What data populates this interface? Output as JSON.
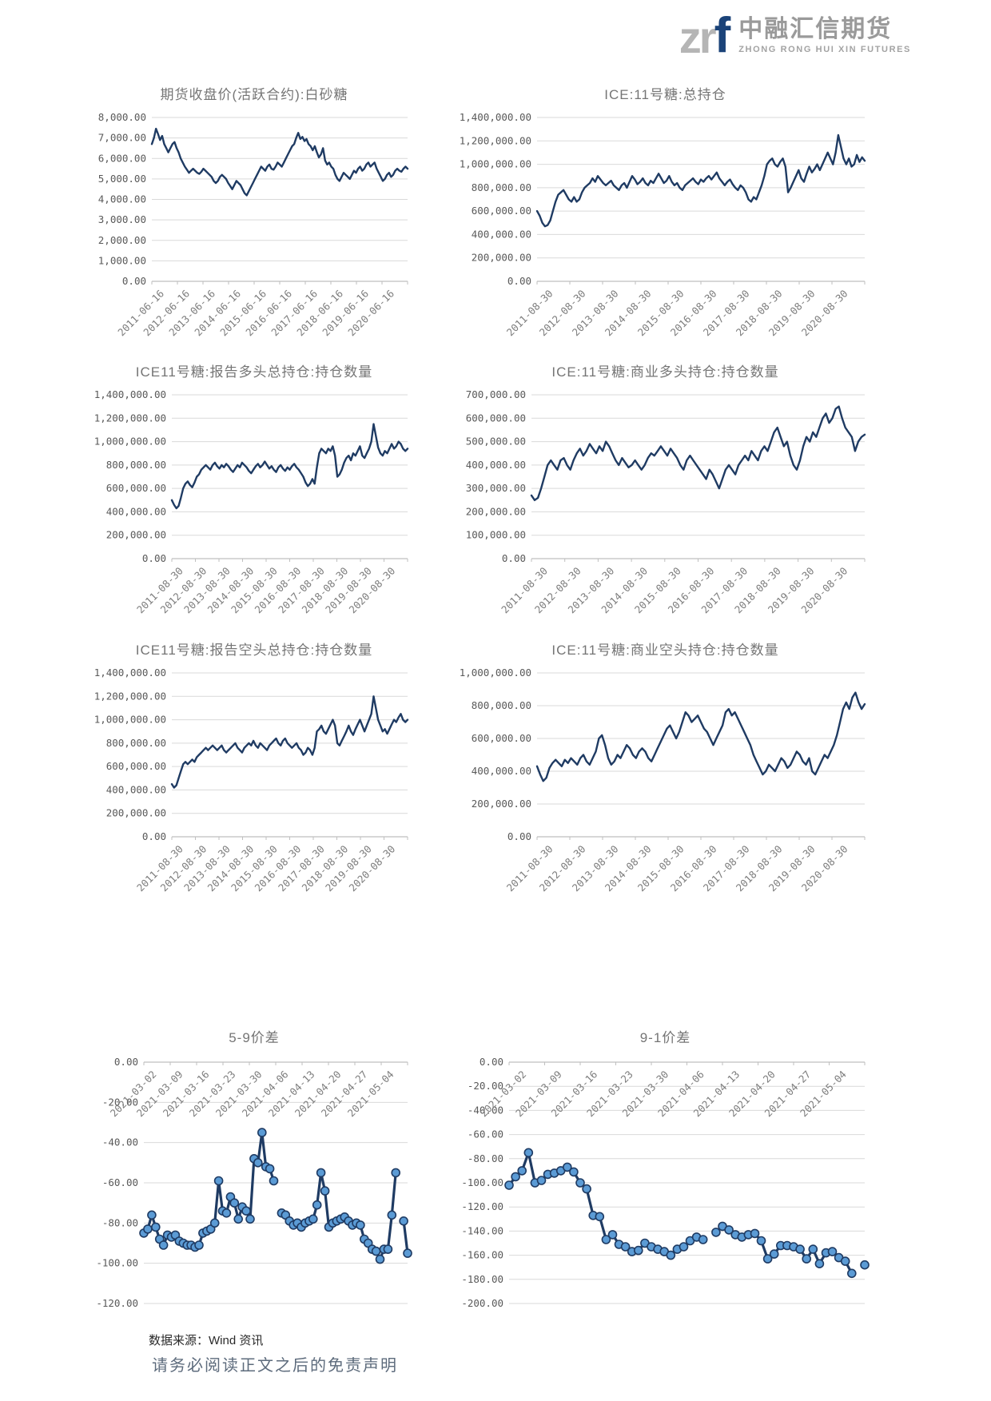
{
  "logo": {
    "zr": "zr",
    "f": "f",
    "name_cn": "中融汇信期货",
    "name_en": "ZHONG RONG HUI XIN FUTURES"
  },
  "footer": {
    "source": "数据来源：Wind 资讯",
    "disclaimer": "请务必阅读正文之后的免责声明"
  },
  "style": {
    "line_color": "#1f3b63",
    "marker_fill": "#5b9bd5",
    "grid_color": "#d9d9d9",
    "axis_color": "#bfbfbf",
    "tick_label_color": "#595959",
    "title_color": "#757575"
  },
  "chart_data": [
    {
      "type": "line",
      "title": "期货收盘价(活跃合约):白砂糖",
      "ylabel": "",
      "xlabel": "",
      "y_min": 0,
      "y_max": 8000,
      "y_step": 1000,
      "markers": false,
      "x_labels": [
        "2011-06-16",
        "2012-06-16",
        "2013-06-16",
        "2014-06-16",
        "2015-06-16",
        "2016-06-16",
        "2017-06-16",
        "2018-06-16",
        "2019-06-16",
        "2020-06-16"
      ],
      "values": [
        6700,
        7000,
        7450,
        7200,
        6900,
        7100,
        6700,
        6500,
        6300,
        6500,
        6700,
        6800,
        6500,
        6300,
        6000,
        5800,
        5600,
        5450,
        5300,
        5400,
        5500,
        5400,
        5300,
        5250,
        5350,
        5500,
        5400,
        5300,
        5200,
        5100,
        4900,
        4800,
        4900,
        5100,
        5200,
        5100,
        5000,
        4800,
        4650,
        4500,
        4700,
        4900,
        4800,
        4700,
        4500,
        4300,
        4200,
        4400,
        4600,
        4800,
        5000,
        5200,
        5400,
        5600,
        5500,
        5400,
        5600,
        5700,
        5500,
        5450,
        5600,
        5800,
        5700,
        5600,
        5800,
        6000,
        6200,
        6400,
        6600,
        6700,
        7000,
        7250,
        6950,
        7050,
        6850,
        6950,
        6700,
        6600,
        6400,
        6600,
        6300,
        6050,
        6200,
        6500,
        5900,
        5700,
        5800,
        5600,
        5500,
        5200,
        5000,
        4900,
        5100,
        5300,
        5200,
        5100,
        5000,
        5200,
        5400,
        5300,
        5500,
        5600,
        5400,
        5500,
        5700,
        5800,
        5600,
        5700,
        5800,
        5500,
        5300,
        5100,
        4900,
        5000,
        5200,
        5300,
        5100,
        5200,
        5400,
        5500,
        5400,
        5350,
        5500,
        5600,
        5500
      ]
    },
    {
      "type": "line",
      "title": "ICE:11号糖:总持仓",
      "ylabel": "",
      "xlabel": "",
      "y_min": 0,
      "y_max": 1400000,
      "y_step": 200000,
      "markers": false,
      "x_labels": [
        "2011-08-30",
        "2012-08-30",
        "2013-08-30",
        "2014-08-30",
        "2015-08-30",
        "2016-08-30",
        "2017-08-30",
        "2018-08-30",
        "2019-08-30",
        "2020-08-30"
      ],
      "values": [
        600000,
        560000,
        500000,
        470000,
        480000,
        520000,
        600000,
        680000,
        740000,
        760000,
        780000,
        740000,
        700000,
        680000,
        720000,
        680000,
        700000,
        760000,
        800000,
        820000,
        840000,
        880000,
        850000,
        900000,
        870000,
        840000,
        820000,
        840000,
        860000,
        820000,
        800000,
        780000,
        820000,
        840000,
        800000,
        850000,
        900000,
        870000,
        830000,
        850000,
        880000,
        840000,
        820000,
        860000,
        840000,
        880000,
        920000,
        880000,
        840000,
        860000,
        900000,
        850000,
        820000,
        840000,
        800000,
        780000,
        820000,
        840000,
        860000,
        880000,
        850000,
        830000,
        870000,
        850000,
        880000,
        900000,
        870000,
        900000,
        930000,
        880000,
        850000,
        820000,
        850000,
        870000,
        830000,
        800000,
        780000,
        820000,
        800000,
        760000,
        700000,
        680000,
        720000,
        700000,
        760000,
        820000,
        900000,
        1000000,
        1030000,
        1050000,
        1000000,
        980000,
        1020000,
        1050000,
        980000,
        760000,
        800000,
        850000,
        900000,
        950000,
        880000,
        850000,
        920000,
        980000,
        930000,
        960000,
        1000000,
        950000,
        1000000,
        1050000,
        1100000,
        1050000,
        1000000,
        1100000,
        1250000,
        1150000,
        1050000,
        1000000,
        1050000,
        980000,
        1000000,
        1080000,
        1020000,
        1060000,
        1030000
      ]
    },
    {
      "type": "line",
      "title": "ICE11号糖:报告多头总持仓:持仓数量",
      "ylabel": "",
      "xlabel": "",
      "y_min": 0,
      "y_max": 1400000,
      "y_step": 200000,
      "markers": false,
      "x_labels": [
        "2011-08-30",
        "2012-08-30",
        "2013-08-30",
        "2014-08-30",
        "2015-08-30",
        "2016-08-30",
        "2017-08-30",
        "2018-08-30",
        "2019-08-30",
        "2020-08-30"
      ],
      "values": [
        500000,
        460000,
        430000,
        450000,
        520000,
        600000,
        640000,
        660000,
        630000,
        610000,
        650000,
        700000,
        720000,
        760000,
        780000,
        800000,
        780000,
        760000,
        800000,
        820000,
        790000,
        770000,
        800000,
        780000,
        810000,
        790000,
        760000,
        740000,
        770000,
        800000,
        780000,
        820000,
        800000,
        780000,
        750000,
        730000,
        760000,
        790000,
        810000,
        780000,
        800000,
        830000,
        800000,
        770000,
        790000,
        760000,
        740000,
        780000,
        800000,
        770000,
        750000,
        780000,
        760000,
        790000,
        810000,
        780000,
        760000,
        730000,
        700000,
        650000,
        620000,
        640000,
        680000,
        640000,
        780000,
        900000,
        940000,
        920000,
        900000,
        940000,
        920000,
        960000,
        880000,
        700000,
        720000,
        760000,
        820000,
        860000,
        880000,
        840000,
        900000,
        880000,
        920000,
        960000,
        880000,
        860000,
        900000,
        940000,
        1000000,
        1150000,
        1050000,
        950000,
        900000,
        880000,
        920000,
        900000,
        940000,
        980000,
        940000,
        960000,
        1000000,
        980000,
        940000,
        920000,
        940000
      ]
    },
    {
      "type": "line",
      "title": "ICE:11号糖:商业多头持仓:持仓数量",
      "ylabel": "",
      "xlabel": "",
      "y_min": 0,
      "y_max": 700000,
      "y_step": 100000,
      "markers": false,
      "x_labels": [
        "2011-08-30",
        "2012-08-30",
        "2013-08-30",
        "2014-08-30",
        "2015-08-30",
        "2016-08-30",
        "2017-08-30",
        "2018-08-30",
        "2019-08-30",
        "2020-08-30"
      ],
      "values": [
        270000,
        250000,
        260000,
        300000,
        350000,
        400000,
        420000,
        400000,
        380000,
        420000,
        430000,
        400000,
        380000,
        420000,
        450000,
        470000,
        440000,
        460000,
        490000,
        470000,
        450000,
        480000,
        460000,
        500000,
        480000,
        450000,
        420000,
        400000,
        430000,
        410000,
        390000,
        400000,
        420000,
        400000,
        380000,
        400000,
        430000,
        450000,
        440000,
        460000,
        480000,
        460000,
        440000,
        470000,
        450000,
        430000,
        400000,
        380000,
        420000,
        440000,
        420000,
        400000,
        380000,
        360000,
        340000,
        380000,
        360000,
        330000,
        300000,
        340000,
        380000,
        400000,
        380000,
        360000,
        400000,
        420000,
        440000,
        420000,
        460000,
        440000,
        420000,
        460000,
        480000,
        460000,
        500000,
        540000,
        560000,
        520000,
        480000,
        500000,
        440000,
        400000,
        380000,
        420000,
        480000,
        520000,
        500000,
        540000,
        520000,
        560000,
        600000,
        620000,
        580000,
        600000,
        640000,
        650000,
        600000,
        560000,
        540000,
        520000,
        460000,
        500000,
        520000,
        530000
      ]
    },
    {
      "type": "line",
      "title": "ICE11号糖:报告空头总持仓:持仓数量",
      "ylabel": "",
      "xlabel": "",
      "y_min": 0,
      "y_max": 1400000,
      "y_step": 200000,
      "markers": false,
      "x_labels": [
        "2011-08-30",
        "2012-08-30",
        "2013-08-30",
        "2014-08-30",
        "2015-08-30",
        "2016-08-30",
        "2017-08-30",
        "2018-08-30",
        "2019-08-30",
        "2020-08-30"
      ],
      "values": [
        450000,
        420000,
        440000,
        500000,
        560000,
        620000,
        640000,
        620000,
        640000,
        660000,
        640000,
        680000,
        700000,
        720000,
        740000,
        760000,
        740000,
        760000,
        780000,
        760000,
        740000,
        760000,
        780000,
        740000,
        720000,
        740000,
        760000,
        780000,
        800000,
        760000,
        740000,
        720000,
        760000,
        780000,
        800000,
        780000,
        820000,
        780000,
        760000,
        800000,
        780000,
        760000,
        740000,
        780000,
        800000,
        820000,
        840000,
        800000,
        780000,
        820000,
        840000,
        800000,
        780000,
        760000,
        780000,
        800000,
        760000,
        740000,
        700000,
        720000,
        760000,
        740000,
        700000,
        760000,
        900000,
        920000,
        950000,
        900000,
        880000,
        920000,
        960000,
        1000000,
        950000,
        800000,
        780000,
        820000,
        860000,
        900000,
        950000,
        900000,
        870000,
        920000,
        960000,
        1000000,
        950000,
        900000,
        950000,
        1000000,
        1050000,
        1200000,
        1100000,
        1000000,
        950000,
        900000,
        920000,
        880000,
        920000,
        960000,
        1000000,
        980000,
        1020000,
        1050000,
        1000000,
        980000,
        1000000
      ]
    },
    {
      "type": "line",
      "title": "ICE:11号糖:商业空头持仓:持仓数量",
      "ylabel": "",
      "xlabel": "",
      "y_min": 0,
      "y_max": 1000000,
      "y_step": 200000,
      "markers": false,
      "x_labels": [
        "2011-08-30",
        "2012-08-30",
        "2013-08-30",
        "2014-08-30",
        "2015-08-30",
        "2016-08-30",
        "2017-08-30",
        "2018-08-30",
        "2019-08-30",
        "2020-08-30"
      ],
      "values": [
        430000,
        380000,
        340000,
        360000,
        420000,
        450000,
        470000,
        450000,
        430000,
        470000,
        450000,
        480000,
        460000,
        440000,
        480000,
        500000,
        460000,
        440000,
        480000,
        520000,
        600000,
        620000,
        560000,
        480000,
        440000,
        460000,
        500000,
        480000,
        520000,
        560000,
        540000,
        500000,
        480000,
        520000,
        540000,
        520000,
        480000,
        460000,
        500000,
        540000,
        580000,
        620000,
        660000,
        680000,
        640000,
        600000,
        640000,
        700000,
        760000,
        740000,
        700000,
        720000,
        740000,
        700000,
        660000,
        640000,
        600000,
        560000,
        600000,
        640000,
        680000,
        760000,
        780000,
        740000,
        760000,
        720000,
        680000,
        640000,
        600000,
        560000,
        500000,
        460000,
        420000,
        380000,
        400000,
        440000,
        420000,
        400000,
        440000,
        480000,
        460000,
        420000,
        440000,
        480000,
        520000,
        500000,
        460000,
        440000,
        480000,
        400000,
        380000,
        420000,
        460000,
        500000,
        480000,
        520000,
        560000,
        620000,
        700000,
        780000,
        820000,
        780000,
        850000,
        880000,
        820000,
        780000,
        810000
      ]
    },
    {
      "type": "line",
      "title": "5-9价差",
      "ylabel": "",
      "xlabel": "",
      "y_min": -120,
      "y_max": 0,
      "y_step": 20,
      "markers": true,
      "x_labels": [
        "2021-03-02",
        "2021-03-09",
        "2021-03-16",
        "2021-03-23",
        "2021-03-30",
        "2021-04-06",
        "2021-04-13",
        "2021-04-20",
        "2021-04-27",
        "2021-05-04"
      ],
      "values": [
        -85,
        -83,
        -76,
        -82,
        -88,
        -91,
        -86,
        -87,
        -86,
        -89,
        -90,
        -91,
        -91,
        -92,
        -91,
        -85,
        -84,
        -83,
        -80,
        -59,
        -74,
        -75,
        -67,
        -70,
        -78,
        -72,
        -74,
        -78,
        -48,
        -50,
        -35,
        -52,
        -53,
        -59,
        null,
        -75,
        -76,
        -79,
        -81,
        -80,
        -82,
        -80,
        -79,
        -78,
        -71,
        -55,
        -64,
        -82,
        -80,
        -79,
        -78,
        -77,
        -79,
        -81,
        -80,
        -81,
        -88,
        -90,
        -93,
        -94,
        -98,
        -93,
        -93,
        -76,
        -55,
        null,
        -79,
        -95
      ]
    },
    {
      "type": "line",
      "title": "9-1价差",
      "ylabel": "",
      "xlabel": "",
      "y_min": -200,
      "y_max": 0,
      "y_step": 20,
      "markers": true,
      "x_labels": [
        "2021-03-02",
        "2021-03-09",
        "2021-03-16",
        "2021-03-23",
        "2021-03-30",
        "2021-04-06",
        "2021-04-13",
        "2021-04-20",
        "2021-04-27",
        "2021-05-04"
      ],
      "values": [
        -102,
        -95,
        -90,
        -75,
        -100,
        -98,
        -93,
        -92,
        -90,
        -87,
        -91,
        -100,
        -105,
        -127,
        -128,
        -147,
        -143,
        -151,
        -153,
        -157,
        -156,
        -150,
        -153,
        -155,
        -157,
        -160,
        -155,
        -153,
        -148,
        -145,
        -147,
        null,
        -141,
        -136,
        -139,
        -143,
        -145,
        -143,
        -142,
        -148,
        -163,
        -159,
        -152,
        -152,
        -153,
        -155,
        -163,
        -155,
        -167,
        -158,
        -157,
        -162,
        -165,
        -175,
        null,
        -168
      ]
    }
  ]
}
